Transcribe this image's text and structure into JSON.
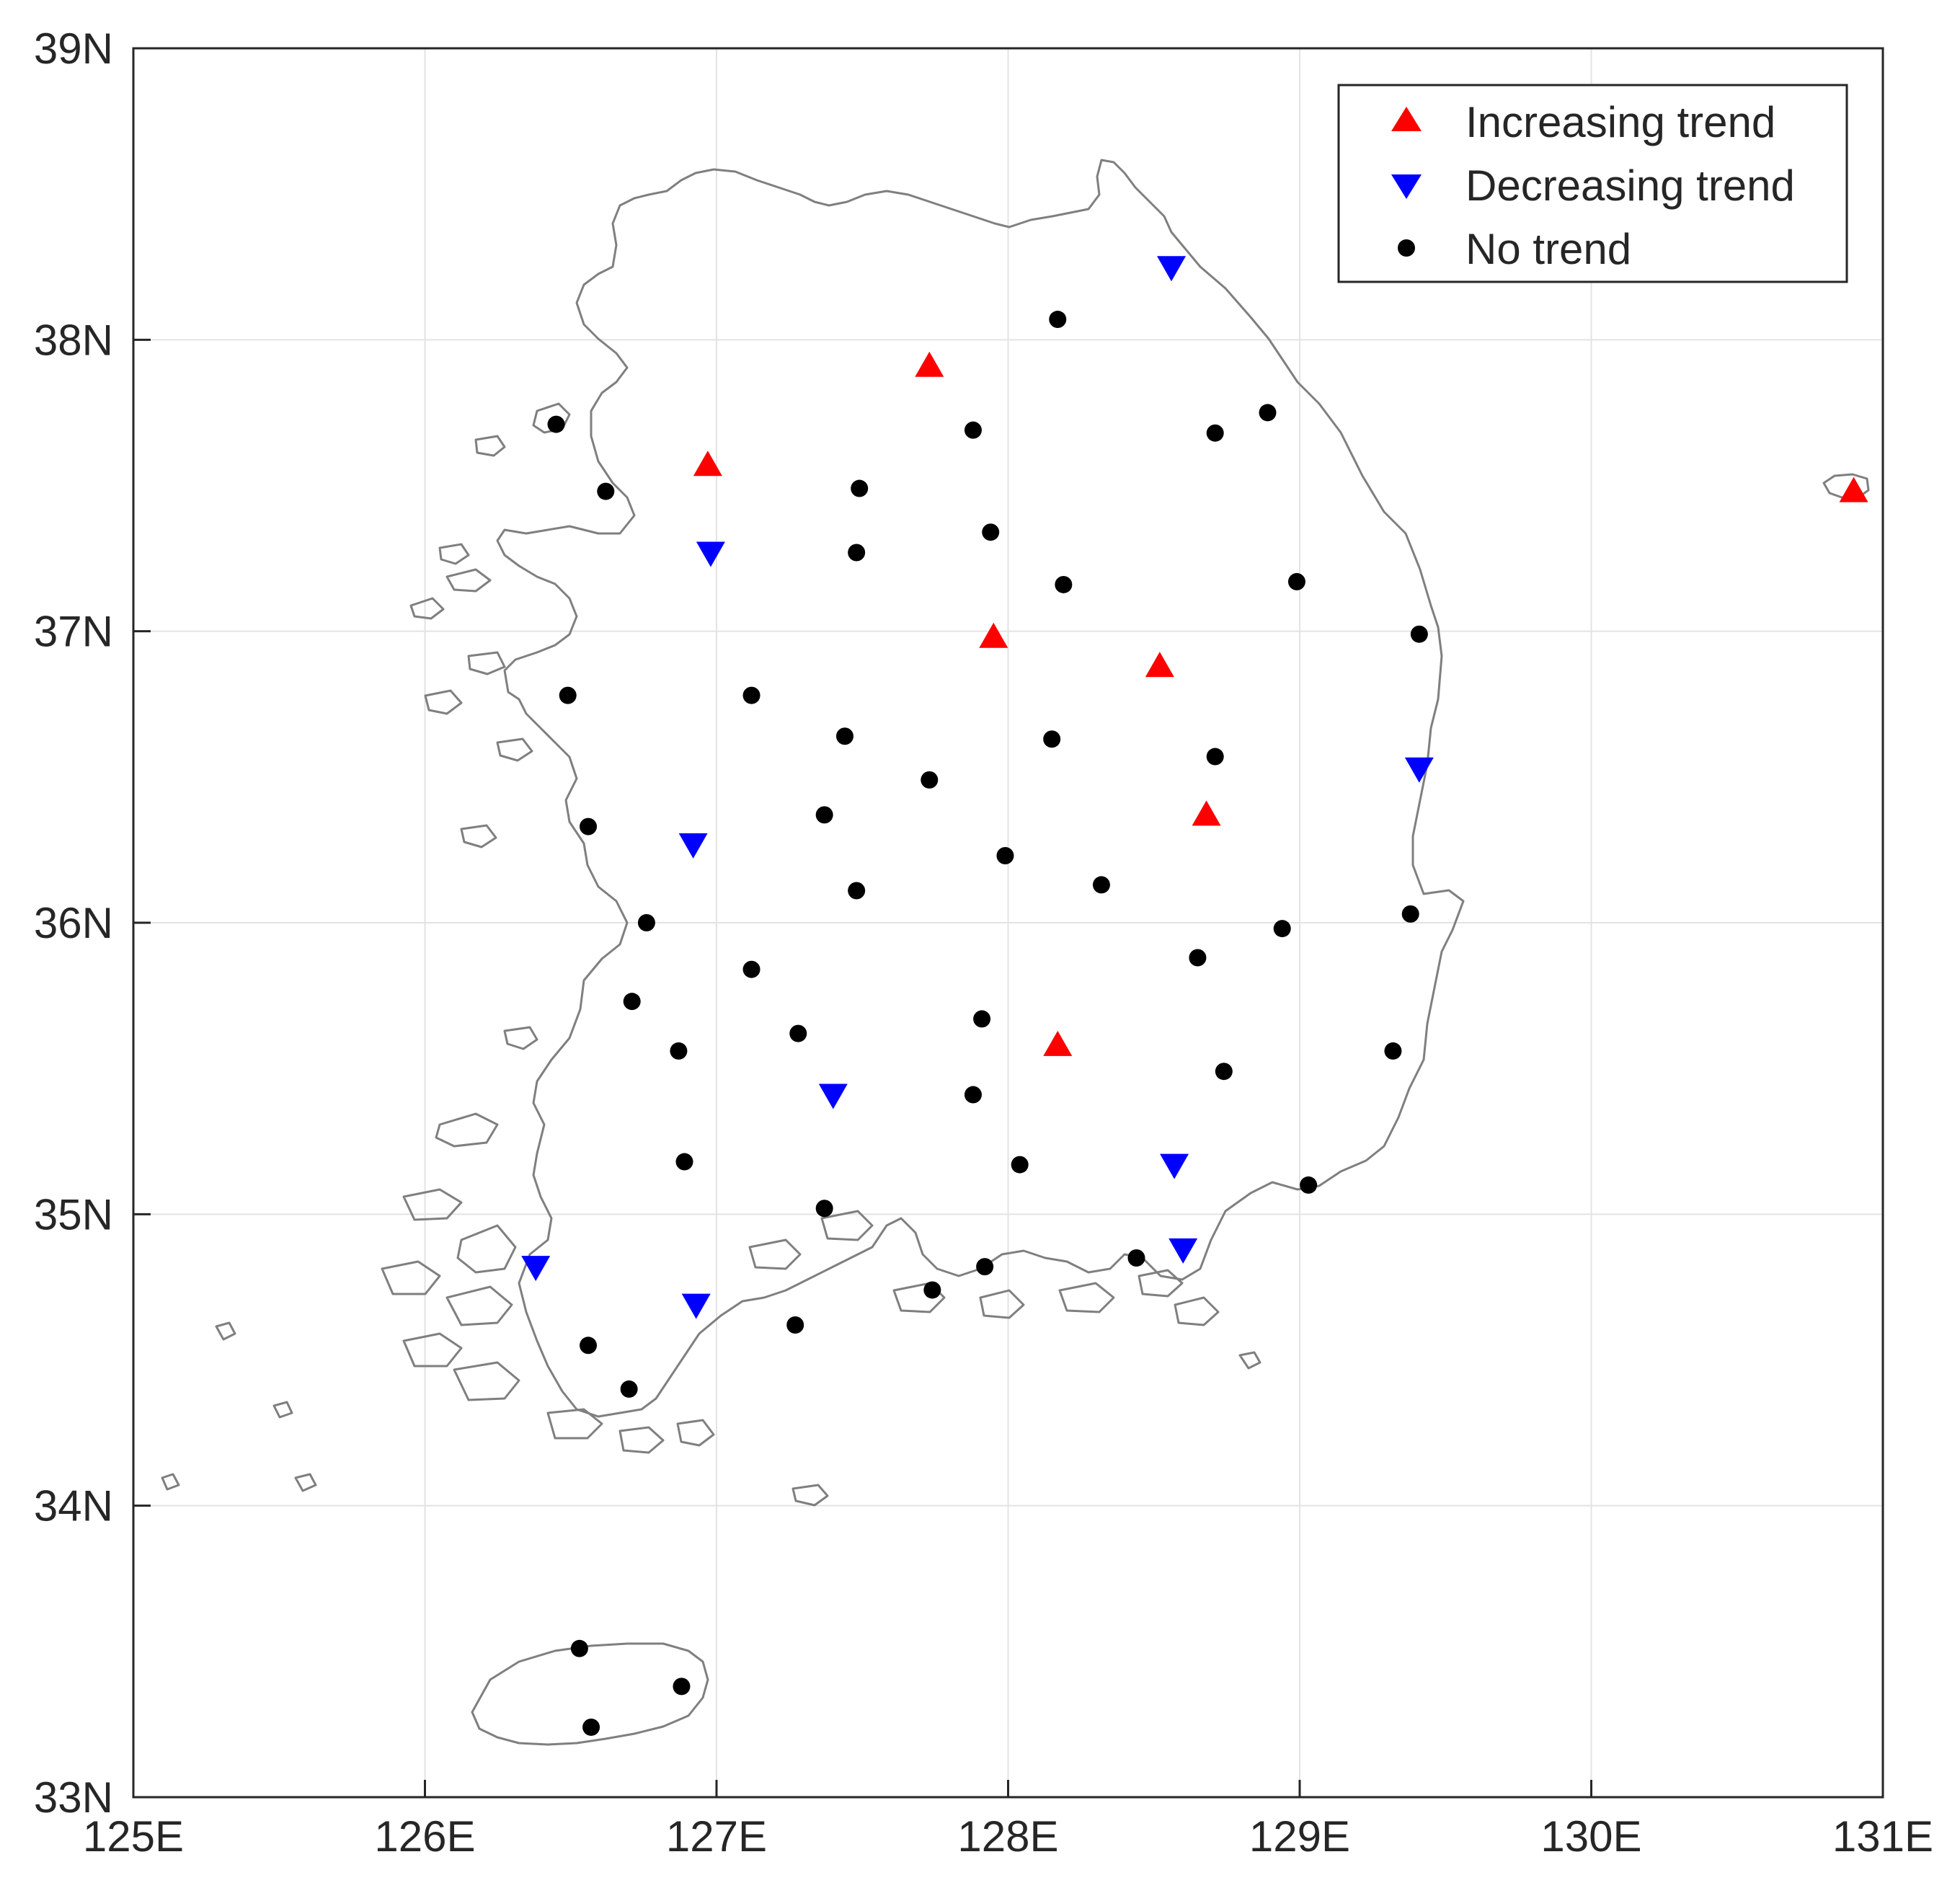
{
  "chart_data": {
    "type": "scatter",
    "subtype": "map",
    "title": "",
    "xlim": [
      125,
      131
    ],
    "ylim": [
      33,
      39
    ],
    "x_ticks": [
      {
        "value": 125,
        "label": "125E"
      },
      {
        "value": 126,
        "label": "126E"
      },
      {
        "value": 127,
        "label": "127E"
      },
      {
        "value": 128,
        "label": "128E"
      },
      {
        "value": 129,
        "label": "129E"
      },
      {
        "value": 130,
        "label": "130E"
      },
      {
        "value": 131,
        "label": "131E"
      }
    ],
    "y_ticks": [
      {
        "value": 33,
        "label": "33N"
      },
      {
        "value": 34,
        "label": "34N"
      },
      {
        "value": 35,
        "label": "35N"
      },
      {
        "value": 36,
        "label": "36N"
      },
      {
        "value": 37,
        "label": "37N"
      },
      {
        "value": 38,
        "label": "38N"
      },
      {
        "value": 39,
        "label": "39N"
      }
    ],
    "grid": true,
    "legend": {
      "position": "top-right",
      "entries": [
        {
          "key": "increasing",
          "label": "Increasing trend",
          "marker": "triangle-up",
          "color": "#ff0000"
        },
        {
          "key": "decreasing",
          "label": "Decreasing trend",
          "marker": "triangle-down",
          "color": "#0000ff"
        },
        {
          "key": "none",
          "label": "No trend",
          "marker": "circle",
          "color": "#000000"
        }
      ]
    },
    "series": [
      {
        "name": "Increasing trend",
        "key": "increasing",
        "points": [
          [
            127.73,
            37.91
          ],
          [
            126.97,
            37.57
          ],
          [
            127.95,
            36.98
          ],
          [
            128.52,
            36.88
          ],
          [
            128.68,
            36.37
          ],
          [
            128.17,
            35.58
          ],
          [
            130.9,
            37.48
          ]
        ]
      },
      {
        "name": "Decreasing trend",
        "key": "decreasing",
        "points": [
          [
            128.56,
            38.25
          ],
          [
            126.98,
            37.27
          ],
          [
            129.41,
            36.53
          ],
          [
            126.92,
            36.27
          ],
          [
            127.4,
            35.41
          ],
          [
            128.57,
            35.17
          ],
          [
            128.6,
            34.88
          ],
          [
            126.38,
            34.82
          ],
          [
            126.93,
            34.69
          ]
        ]
      },
      {
        "name": "No trend",
        "key": "none",
        "points": [
          [
            128.17,
            38.07
          ],
          [
            126.45,
            37.71
          ],
          [
            127.88,
            37.69
          ],
          [
            128.71,
            37.68
          ],
          [
            128.89,
            37.75
          ],
          [
            126.62,
            37.48
          ],
          [
            127.49,
            37.49
          ],
          [
            127.94,
            37.34
          ],
          [
            127.48,
            37.27
          ],
          [
            128.19,
            37.16
          ],
          [
            128.99,
            37.17
          ],
          [
            129.41,
            36.99
          ],
          [
            126.49,
            36.78
          ],
          [
            127.12,
            36.78
          ],
          [
            127.44,
            36.64
          ],
          [
            128.15,
            36.63
          ],
          [
            128.71,
            36.57
          ],
          [
            127.73,
            36.49
          ],
          [
            127.37,
            36.37
          ],
          [
            126.56,
            36.33
          ],
          [
            127.99,
            36.23
          ],
          [
            128.32,
            36.13
          ],
          [
            127.48,
            36.11
          ],
          [
            126.76,
            36.0
          ],
          [
            129.38,
            36.03
          ],
          [
            128.94,
            35.98
          ],
          [
            127.12,
            35.84
          ],
          [
            128.65,
            35.88
          ],
          [
            126.71,
            35.73
          ],
          [
            127.91,
            35.67
          ],
          [
            127.28,
            35.62
          ],
          [
            126.87,
            35.56
          ],
          [
            129.32,
            35.56
          ],
          [
            128.74,
            35.49
          ],
          [
            127.88,
            35.41
          ],
          [
            126.89,
            35.18
          ],
          [
            128.04,
            35.17
          ],
          [
            129.03,
            35.1
          ],
          [
            127.37,
            35.02
          ],
          [
            128.44,
            34.85
          ],
          [
            127.92,
            34.82
          ],
          [
            127.74,
            34.74
          ],
          [
            127.27,
            34.62
          ],
          [
            126.56,
            34.55
          ],
          [
            126.7,
            34.4
          ],
          [
            126.53,
            33.51
          ],
          [
            126.88,
            33.38
          ],
          [
            126.57,
            33.24
          ]
        ]
      }
    ]
  }
}
